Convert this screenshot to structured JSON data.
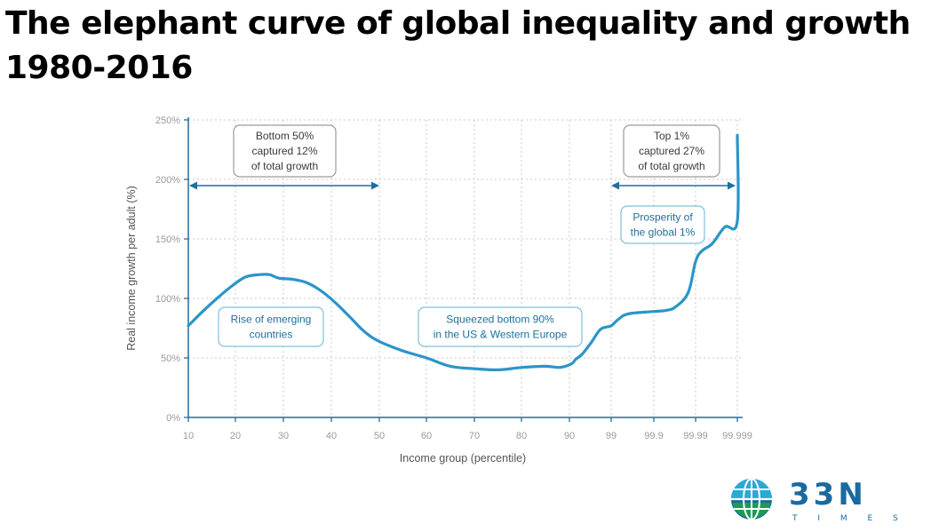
{
  "title_line1": "The elephant curve of global inequality and growth",
  "title_line2": "1980-2016",
  "logo": {
    "brand": "33N",
    "tagline": "T I M E S",
    "icon": "globe-icon",
    "colors": {
      "blue": "#1a6aa0",
      "green": "#1e9a52",
      "cyan": "#2aa8d8"
    }
  },
  "chart_data": {
    "type": "line",
    "title": "",
    "xlabel": "Income group (percentile)",
    "ylabel": "Real income growth per adult (%)",
    "x_ticks": [
      "10",
      "20",
      "30",
      "40",
      "50",
      "60",
      "70",
      "80",
      "90",
      "99",
      "99.9",
      "99.99",
      "99.999"
    ],
    "y_ticks": [
      "0%",
      "50%",
      "100%",
      "150%",
      "200%",
      "250%"
    ],
    "ylim": [
      0,
      250
    ],
    "grid": true,
    "line_color": "#2b95c9",
    "series": [
      {
        "values": [
          [
            10,
            77
          ],
          [
            13,
            89
          ],
          [
            16,
            100
          ],
          [
            19,
            110
          ],
          [
            22,
            118
          ],
          [
            25,
            120
          ],
          [
            27,
            120
          ],
          [
            29,
            117
          ],
          [
            32,
            116
          ],
          [
            35,
            113
          ],
          [
            38,
            106
          ],
          [
            41,
            96
          ],
          [
            44,
            84
          ],
          [
            47,
            72
          ],
          [
            50,
            64
          ],
          [
            55,
            56
          ],
          [
            60,
            50
          ],
          [
            65,
            43
          ],
          [
            70,
            41
          ],
          [
            75,
            40
          ],
          [
            80,
            42
          ],
          [
            85,
            43
          ],
          [
            88,
            42
          ],
          [
            91,
            45
          ],
          [
            93,
            49
          ],
          [
            95,
            53
          ],
          [
            97,
            63
          ],
          [
            98.2,
            74
          ],
          [
            99,
            77
          ],
          [
            99.3,
            82
          ],
          [
            99.6,
            87
          ],
          [
            99.9,
            89
          ],
          [
            99.95,
            90
          ],
          [
            99.97,
            93
          ],
          [
            99.985,
            105
          ],
          [
            99.99,
            131
          ],
          [
            99.993,
            140
          ],
          [
            99.996,
            146
          ],
          [
            99.998,
            160
          ],
          [
            99.999,
            165
          ],
          [
            100,
            237
          ]
        ]
      }
    ],
    "annotations": [
      {
        "lines": [
          "Bottom 50%",
          "captured 12%",
          "of total growth"
        ],
        "range": [
          "10",
          "50"
        ]
      },
      {
        "lines": [
          "Top 1%",
          "captured 27%",
          "of total growth"
        ],
        "range": [
          "99",
          "99.999"
        ]
      },
      {
        "lines": [
          "Rise of emerging",
          "countries"
        ]
      },
      {
        "lines": [
          "Squeezed bottom 90%",
          "in the US & Western Europe"
        ]
      },
      {
        "lines": [
          "Prosperity of",
          "the global 1%"
        ]
      }
    ]
  }
}
